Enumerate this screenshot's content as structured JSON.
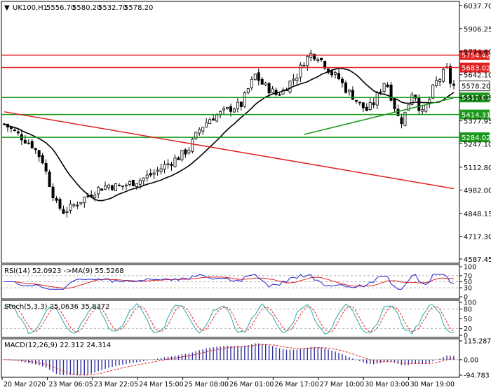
{
  "chart_data": {
    "type": "candlestick",
    "title": "UK100,H1",
    "ohlc_header": [
      "5556.70",
      "5580.20",
      "5532.70",
      "5578.20"
    ],
    "price_ticks": [
      "6037.70",
      "5906.25",
      "5774.80",
      "5642.10",
      "5510.65",
      "5377.95",
      "5247.10",
      "5112.80",
      "4982.00",
      "4848.15",
      "4717.30",
      "4587.45"
    ],
    "price_range": [
      4587.45,
      6037.7
    ],
    "x_ticks": [
      "20 Mar 2020",
      "23 Mar 06:05",
      "23 Mar 22:05",
      "24 Mar 15:00",
      "25 Mar 08:00",
      "26 Mar 01:00",
      "26 Mar 17:00",
      "27 Mar 10:00",
      "30 Mar 03:00",
      "30 Mar 19:00"
    ],
    "horizontal_levels": [
      {
        "label": "5754.42",
        "color": "#e02020"
      },
      {
        "label": "5683.02",
        "color": "#e02020"
      },
      {
        "label": "5512.02",
        "color": "#1a9a1a"
      },
      {
        "label": "5414.31",
        "color": "#1a9a1a"
      },
      {
        "label": "5284.02",
        "color": "#1a9a1a"
      }
    ],
    "current_price": "5578.20",
    "trendlines": [
      {
        "color": "#e02020",
        "points": [
          [
            0,
            5430
          ],
          [
            130,
            4990
          ]
        ]
      },
      {
        "color": "#1a9a1a",
        "points": [
          [
            86,
            5300
          ],
          [
            130,
            5510
          ]
        ]
      }
    ],
    "candles_count": 130,
    "close_path": [
      [
        0,
        5360
      ],
      [
        4,
        5300
      ],
      [
        8,
        5240
      ],
      [
        11,
        5150
      ],
      [
        13,
        5020
      ],
      [
        15,
        4900
      ],
      [
        17,
        4860
      ],
      [
        19,
        4880
      ],
      [
        21,
        4910
      ],
      [
        24,
        4950
      ],
      [
        27,
        4990
      ],
      [
        30,
        5010
      ],
      [
        33,
        5000
      ],
      [
        36,
        5020
      ],
      [
        39,
        5040
      ],
      [
        43,
        5080
      ],
      [
        46,
        5120
      ],
      [
        50,
        5170
      ],
      [
        53,
        5220
      ],
      [
        56,
        5330
      ],
      [
        59,
        5390
      ],
      [
        62,
        5420
      ],
      [
        65,
        5450
      ],
      [
        68,
        5470
      ],
      [
        70,
        5560
      ],
      [
        72,
        5640
      ],
      [
        74,
        5590
      ],
      [
        76,
        5560
      ],
      [
        78,
        5530
      ],
      [
        80,
        5550
      ],
      [
        82,
        5600
      ],
      [
        84,
        5640
      ],
      [
        86,
        5720
      ],
      [
        88,
        5760
      ],
      [
        90,
        5750
      ],
      [
        92,
        5700
      ],
      [
        94,
        5650
      ],
      [
        96,
        5620
      ],
      [
        98,
        5560
      ],
      [
        100,
        5520
      ],
      [
        102,
        5470
      ],
      [
        104,
        5440
      ],
      [
        106,
        5480
      ],
      [
        108,
        5560
      ],
      [
        109,
        5600
      ],
      [
        110,
        5580
      ],
      [
        111,
        5520
      ],
      [
        112,
        5460
      ],
      [
        113,
        5400
      ],
      [
        114,
        5380
      ],
      [
        115,
        5420
      ],
      [
        116,
        5480
      ],
      [
        117,
        5540
      ],
      [
        118,
        5520
      ],
      [
        119,
        5460
      ],
      [
        120,
        5420
      ],
      [
        121,
        5460
      ],
      [
        122,
        5500
      ],
      [
        123,
        5560
      ],
      [
        124,
        5600
      ],
      [
        125,
        5620
      ],
      [
        126,
        5650
      ],
      [
        127,
        5670
      ],
      [
        128,
        5600
      ],
      [
        129,
        5578
      ]
    ],
    "ma_color": "#000000",
    "rsi": {
      "label": "RSI(14) 52.0923 ->MA(9) 55.5268",
      "ticks": [
        "100",
        "70",
        "50",
        "30",
        "0"
      ],
      "levels": [
        70,
        50,
        30
      ],
      "rsi_color": "#2020d0",
      "ma_color": "#e02020"
    },
    "stoch": {
      "label": "Stoch(5,3,3) 25.0636 35.8372",
      "ticks": [
        "100",
        "80",
        "50",
        "20",
        "0"
      ],
      "levels": [
        80,
        20
      ],
      "main_color": "#2aa8a8",
      "signal_color": "#e02020"
    },
    "macd": {
      "label": "MACD(12,26,9) 22.312 24.314",
      "ticks": [
        "115.287",
        "0.00",
        "-94.783"
      ],
      "hist_color": "#3030a0",
      "signal_color": "#e02020"
    }
  }
}
